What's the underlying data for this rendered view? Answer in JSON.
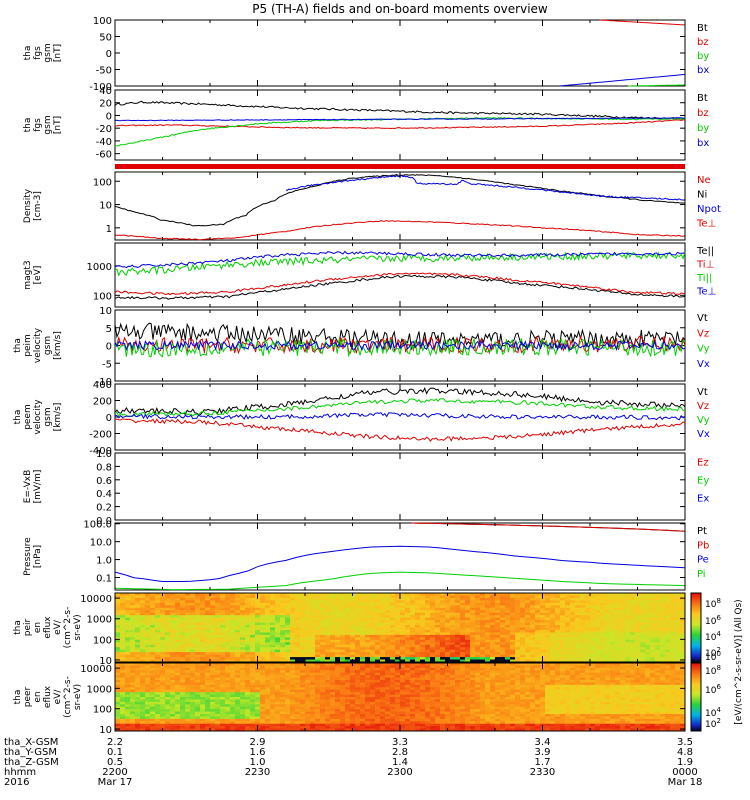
{
  "figure": {
    "title": "P5 (TH-A) fields and on-board moments overview"
  },
  "colors": {
    "black": "#000000",
    "red": "#e00000",
    "green": "#00d000",
    "blue": "#0000e0"
  },
  "chart_data": [
    {
      "type": "line",
      "ylabel": [
        "tha",
        "fgs",
        "gsm",
        "[nT]"
      ],
      "ylim": [
        -100,
        100
      ],
      "yticks": [
        100,
        50,
        0,
        -50,
        -100
      ],
      "series": [
        {
          "name": "Bt",
          "color": "black",
          "x": [],
          "y": []
        },
        {
          "name": "bz",
          "color": "red",
          "x": [
            0.85,
            1.0
          ],
          "y": [
            100,
            85
          ]
        },
        {
          "name": "by",
          "color": "green",
          "x": [
            0.9,
            1.0
          ],
          "y": [
            -100,
            -97
          ]
        },
        {
          "name": "bx",
          "color": "blue",
          "x": [
            0.78,
            1.0
          ],
          "y": [
            -100,
            -65
          ]
        }
      ]
    },
    {
      "type": "line",
      "ylabel": [
        "tha",
        "fgs",
        "gsm",
        "[nT]"
      ],
      "ylim": [
        -70,
        40
      ],
      "yticks": [
        40,
        20,
        0,
        -20,
        -40,
        -60
      ],
      "series": [
        {
          "name": "Bt",
          "color": "black",
          "x": [
            0,
            0.05,
            0.15,
            0.3,
            0.45,
            0.6,
            0.75,
            0.9,
            1.0
          ],
          "y": [
            17,
            21,
            18,
            12,
            8,
            4,
            2,
            -3,
            -5
          ],
          "noise": 1.5
        },
        {
          "name": "bz",
          "color": "red",
          "x": [
            0,
            0.1,
            0.2,
            0.3,
            0.45,
            0.6,
            0.75,
            0.9,
            1.0
          ],
          "y": [
            -16,
            -15,
            -17,
            -19,
            -20,
            -19,
            -17,
            -12,
            -7
          ],
          "noise": 0.8
        },
        {
          "name": "by",
          "color": "green",
          "x": [
            0,
            0.05,
            0.15,
            0.25,
            0.35,
            0.5,
            0.65,
            0.8,
            0.9,
            1.0
          ],
          "y": [
            -48,
            -40,
            -22,
            -13,
            -8,
            -6,
            -4,
            -5,
            -6,
            -5
          ],
          "noise": 1
        },
        {
          "name": "bx",
          "color": "blue",
          "x": [
            0,
            1.0
          ],
          "y": [
            -8,
            -4
          ],
          "noise": 0.5
        }
      ]
    },
    {
      "type": "line",
      "log": true,
      "ylabel": [
        "Density",
        "[cm-3]"
      ],
      "ylim": [
        0.3,
        250
      ],
      "yticks": [
        100,
        10,
        1
      ],
      "series": [
        {
          "name": "Ne",
          "color": "red",
          "x": [
            0,
            0.08,
            0.15,
            0.22,
            0.3,
            0.4,
            0.47,
            0.55,
            0.65,
            0.75,
            0.85,
            0.92,
            1.0
          ],
          "y": [
            0.5,
            0.35,
            0.32,
            0.38,
            0.7,
            1.5,
            2.0,
            1.8,
            1.4,
            1.0,
            0.7,
            0.5,
            0.45
          ],
          "noise": 0.02
        },
        {
          "name": "Ni",
          "color": "black",
          "x": [
            0,
            0.03,
            0.08,
            0.14,
            0.19,
            0.23,
            0.28,
            0.35,
            0.42,
            0.5,
            0.56,
            0.63,
            0.7,
            0.78,
            0.86,
            0.93,
            1.0
          ],
          "y": [
            8,
            5,
            2.2,
            1.2,
            1.4,
            3.5,
            15,
            60,
            140,
            190,
            180,
            120,
            70,
            38,
            22,
            15,
            11
          ],
          "noise": 0.02
        },
        {
          "name": "Npot",
          "color": "blue",
          "x": [
            0.3,
            0.4,
            0.5,
            0.52,
            0.53,
            0.6,
            0.61,
            0.62,
            0.65,
            0.7,
            0.78,
            0.86,
            0.93,
            1.0
          ],
          "y": [
            40,
            100,
            170,
            150,
            80,
            75,
            110,
            80,
            70,
            55,
            35,
            22,
            19,
            16
          ],
          "noise": 0.03
        },
        {
          "name": "Te⊥",
          "color": "red",
          "x": [],
          "y": []
        }
      ]
    },
    {
      "type": "line",
      "log": true,
      "ylabel": [
        "magt3",
        "[eV]"
      ],
      "ylim": [
        40,
        6000
      ],
      "yticks": [
        1000,
        100
      ],
      "series": [
        {
          "name": "Te||",
          "color": "black",
          "x": [
            0,
            0.1,
            0.2,
            0.3,
            0.4,
            0.5,
            0.6,
            0.7,
            0.8,
            0.9,
            1.0
          ],
          "y": [
            85,
            80,
            90,
            160,
            280,
            450,
            420,
            260,
            180,
            110,
            90
          ],
          "noise": 0.04
        },
        {
          "name": "Ti⊥",
          "color": "red",
          "x": [
            0,
            0.1,
            0.2,
            0.3,
            0.4,
            0.5,
            0.6,
            0.7,
            0.8,
            0.9,
            1.0
          ],
          "y": [
            130,
            110,
            130,
            220,
            380,
            550,
            500,
            330,
            220,
            130,
            110
          ],
          "noise": 0.04
        },
        {
          "name": "Ti||",
          "color": "green",
          "x": [
            0,
            0.1,
            0.2,
            0.3,
            0.4,
            0.5,
            0.6,
            0.7,
            0.8,
            0.9,
            1.0
          ],
          "y": [
            600,
            750,
            1100,
            1400,
            1600,
            1800,
            1900,
            2000,
            2100,
            2200,
            2300
          ],
          "noise": 0.12
        },
        {
          "name": "Te⊥",
          "color": "blue",
          "x": [
            0,
            0.1,
            0.2,
            0.3,
            0.4,
            0.5,
            0.6,
            0.7,
            0.8,
            0.9,
            1.0
          ],
          "y": [
            900,
            1100,
            1500,
            2400,
            2800,
            2600,
            2300,
            2300,
            2400,
            2600,
            2600
          ],
          "noise": 0.05
        }
      ]
    },
    {
      "type": "line",
      "ylabel": [
        "tha",
        "peim",
        "velocity",
        "gsm",
        "[km/s]"
      ],
      "ylim": [
        -10,
        10
      ],
      "yticks": [
        10,
        5,
        0,
        -5,
        -10
      ],
      "series": [
        {
          "name": "Vt",
          "color": "black",
          "x": [
            0,
            0.3,
            0.5,
            1.0
          ],
          "y": [
            4,
            3,
            1.5,
            2
          ],
          "noise": 2.5
        },
        {
          "name": "Vz",
          "color": "red",
          "x": [
            0,
            0.3,
            0.5,
            1.0
          ],
          "y": [
            0,
            0,
            0,
            0.5
          ],
          "noise": 2.2
        },
        {
          "name": "Vy",
          "color": "green",
          "x": [
            0,
            0.3,
            0.5,
            1.0
          ],
          "y": [
            -1,
            -0.5,
            -0.5,
            -0.5
          ],
          "noise": 2.4
        },
        {
          "name": "Vx",
          "color": "blue",
          "x": [
            0,
            0.3,
            0.5,
            1.0
          ],
          "y": [
            0,
            0,
            0,
            0
          ],
          "noise": 1.2
        }
      ]
    },
    {
      "type": "line",
      "ylabel": [
        "tha",
        "peem",
        "velocity",
        "gsm",
        "[km/s]"
      ],
      "ylim": [
        -400,
        400
      ],
      "yticks": [
        400,
        200,
        0,
        -200,
        -400
      ],
      "series": [
        {
          "name": "Vt",
          "color": "black",
          "x": [
            0,
            0.15,
            0.3,
            0.45,
            0.55,
            0.7,
            0.85,
            1.0
          ],
          "y": [
            80,
            60,
            150,
            300,
            320,
            280,
            180,
            130
          ],
          "noise": 35
        },
        {
          "name": "Vz",
          "color": "red",
          "x": [
            0,
            0.15,
            0.3,
            0.45,
            0.55,
            0.7,
            0.85,
            1.0
          ],
          "y": [
            -40,
            -60,
            -150,
            -240,
            -270,
            -240,
            -150,
            -80
          ],
          "noise": 25
        },
        {
          "name": "Vy",
          "color": "green",
          "x": [
            0,
            0.15,
            0.3,
            0.45,
            0.55,
            0.7,
            0.85,
            1.0
          ],
          "y": [
            30,
            40,
            100,
            180,
            200,
            180,
            120,
            90
          ],
          "noise": 25
        },
        {
          "name": "Vx",
          "color": "blue",
          "x": [
            0,
            0.15,
            0.3,
            0.45,
            0.55,
            0.7,
            0.85,
            1.0
          ],
          "y": [
            10,
            0,
            0,
            30,
            20,
            0,
            0,
            -10
          ],
          "noise": 25
        }
      ]
    },
    {
      "type": "line",
      "ylabel": [
        "E=-VxB",
        "[mV/m]"
      ],
      "ylim": [
        0,
        1
      ],
      "yticks": [
        1.0,
        0.8,
        0.6,
        0.4,
        0.2,
        0.0
      ],
      "series": [
        {
          "name": "Ez",
          "color": "red",
          "x": [],
          "y": []
        },
        {
          "name": "Ey",
          "color": "green",
          "x": [],
          "y": []
        },
        {
          "name": "Ex",
          "color": "blue",
          "x": [],
          "y": []
        }
      ]
    },
    {
      "type": "line",
      "log": true,
      "ylabel": [
        "Pressure",
        "[nPa]"
      ],
      "ylim": [
        0.02,
        110
      ],
      "yticks": [
        100.0,
        10.0,
        1.0,
        0.1
      ],
      "series": [
        {
          "name": "Pt",
          "color": "black",
          "x": [
            0.52,
            1.0
          ],
          "y": [
            110,
            38
          ]
        },
        {
          "name": "Pb",
          "color": "red",
          "x": [
            0.52,
            1.0
          ],
          "y": [
            110,
            38
          ]
        },
        {
          "name": "Pe",
          "color": "blue",
          "x": [
            0,
            0.03,
            0.08,
            0.13,
            0.18,
            0.23,
            0.3,
            0.38,
            0.45,
            0.5,
            0.55,
            0.62,
            0.7,
            0.78,
            0.86,
            0.93,
            1.0
          ],
          "y": [
            0.2,
            0.1,
            0.06,
            0.06,
            0.08,
            0.2,
            0.9,
            2.8,
            5.0,
            5.5,
            5.0,
            3.0,
            1.6,
            0.9,
            0.6,
            0.45,
            0.35
          ]
        },
        {
          "name": "Pi",
          "color": "green",
          "x": [
            0,
            0.1,
            0.2,
            0.3,
            0.38,
            0.45,
            0.5,
            0.55,
            0.62,
            0.7,
            0.78,
            0.86,
            0.93,
            1.0
          ],
          "y": [
            0.025,
            0.021,
            0.022,
            0.035,
            0.08,
            0.17,
            0.2,
            0.18,
            0.13,
            0.09,
            0.06,
            0.045,
            0.04,
            0.035
          ]
        }
      ]
    },
    {
      "type": "heatmap",
      "ylabel": [
        "tha",
        "peir",
        "en",
        "eflux",
        "eV/",
        "(cm^2-s-",
        "sr-eV)"
      ],
      "yticks": [
        10000,
        1000,
        100,
        10
      ]
    },
    {
      "type": "heatmap",
      "ylabel": [
        "tha",
        "peer",
        "en",
        "eflux",
        "eV/",
        "(cm^2-s-",
        "sr-eV)"
      ],
      "yticks": [
        10000,
        1000,
        100,
        10
      ],
      "colorbar": {
        "label": "[eV/(cm^2-s-sr-eV)] (All Qs)",
        "ticks": [
          "10^8",
          "10^6",
          "10^4",
          "10^2",
          "10^0",
          "10^8",
          "10^6",
          "10^4",
          "10^2"
        ]
      }
    }
  ],
  "axis": {
    "row_labels": [
      "tha_X-GSM",
      "tha_Y-GSM",
      "tha_Z-GSM",
      "hhmm",
      "2016"
    ],
    "columns": [
      {
        "x": "2.2",
        "y": "0.1",
        "z": "0.5",
        "hhmm": "2200",
        "date": "Mar 17"
      },
      {
        "x": "2.9",
        "y": "1.6",
        "z": "1.0",
        "hhmm": "2230",
        "date": ""
      },
      {
        "x": "3.3",
        "y": "2.8",
        "z": "1.4",
        "hhmm": "2300",
        "date": ""
      },
      {
        "x": "3.4",
        "y": "3.9",
        "z": "1.7",
        "hhmm": "2330",
        "date": ""
      },
      {
        "x": "3.5",
        "y": "4.8",
        "z": "1.9",
        "hhmm": "0000",
        "date": "Mar 18"
      }
    ]
  }
}
